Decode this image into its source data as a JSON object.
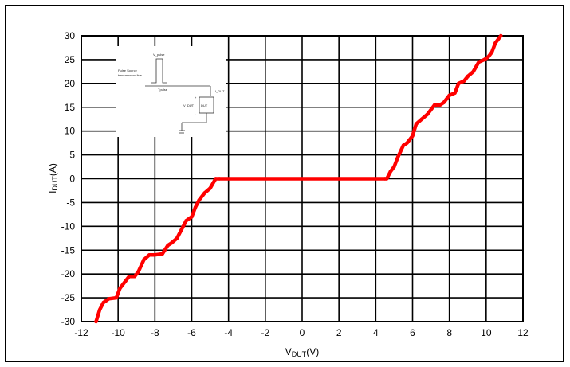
{
  "chart_data": {
    "type": "line",
    "xlabel": {
      "main": "V",
      "sub": "DUT",
      "unit": "(V)"
    },
    "ylabel": {
      "main": "I",
      "sub": "DUT",
      "unit": "(A)"
    },
    "xlim": [
      -12,
      12
    ],
    "ylim": [
      -30,
      30
    ],
    "xticks": [
      -12,
      -10,
      -8,
      -6,
      -4,
      -2,
      0,
      2,
      4,
      6,
      8,
      10,
      12
    ],
    "yticks": [
      30,
      25,
      20,
      15,
      10,
      5,
      0,
      -5,
      -10,
      -15,
      -20,
      -25,
      -30
    ],
    "grid": true,
    "line_color": "#ff0000",
    "series": [
      {
        "x": [
          -11.2,
          -11.0,
          -10.8,
          -10.5,
          -10.1,
          -9.9,
          -9.6,
          -9.4,
          -9.1,
          -8.9,
          -8.6,
          -8.3,
          -8.0,
          -7.6,
          -7.3,
          -7.1,
          -6.8,
          -6.6,
          -6.3,
          -6.0,
          -5.8,
          -5.6,
          -5.3,
          -5.0,
          -4.7,
          -4.5,
          -2,
          0,
          2,
          4.5,
          4.6,
          4.8,
          5.0,
          5.2,
          5.5,
          5.7,
          6.0,
          6.2,
          6.5,
          6.8,
          7.2,
          7.5,
          7.7,
          8.0,
          8.3,
          8.5,
          8.8,
          9.0,
          9.3,
          9.6,
          9.9,
          10.1,
          10.3,
          10.5,
          10.8
        ],
        "y": [
          -30,
          -27.5,
          -26,
          -25.2,
          -25,
          -23,
          -21.5,
          -20.5,
          -20.5,
          -19.5,
          -17,
          -16,
          -16,
          -15.8,
          -14,
          -13.5,
          -12.5,
          -11,
          -8.8,
          -8,
          -6,
          -4.5,
          -3,
          -2,
          0,
          0,
          0,
          0,
          0,
          0,
          0,
          1.5,
          2.5,
          4.5,
          7,
          7.5,
          9,
          11.5,
          12.5,
          13.5,
          15.5,
          15.5,
          16,
          17.5,
          18,
          20,
          20.5,
          21.5,
          22.5,
          24.5,
          25,
          25.5,
          26.5,
          28.5,
          30
        ]
      }
    ],
    "inset": {
      "labels": [
        "V_pulse",
        "Pulse Source",
        "transmission line",
        "Tpulse",
        "I_DUT",
        "V_DUT",
        "DUT",
        "+",
        "-"
      ]
    }
  }
}
